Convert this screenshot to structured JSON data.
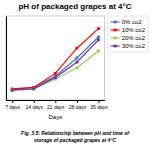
{
  "chart_data": {
    "type": "line",
    "title": "pH of packaged grapes at 4°C",
    "x_label": "Days",
    "caption": "Fig. 3.5: Relationship between pH and time of\nstorage of packaged grapes at 4°C",
    "x": [
      7,
      14,
      21,
      28,
      35
    ],
    "series": [
      {
        "name": "0% co2",
        "color": "#4472C4",
        "marker": "square",
        "values": [
          3.42,
          3.44,
          3.52,
          3.65,
          3.8
        ]
      },
      {
        "name": "10% co2",
        "color": "#FF0000",
        "marker": "square",
        "values": [
          3.43,
          3.44,
          3.54,
          3.72,
          3.86
        ]
      },
      {
        "name": "20% co2",
        "color": "#92D050",
        "marker": "square",
        "values": [
          3.42,
          3.43,
          3.5,
          3.58,
          3.7
        ]
      },
      {
        "name": "30% co2",
        "color": "#7030A0",
        "marker": "square",
        "values": [
          3.42,
          3.43,
          3.51,
          3.62,
          3.78
        ]
      }
    ],
    "xlim": [
      5,
      37
    ],
    "xticks": [
      {
        "value": 7,
        "label": "7 days"
      },
      {
        "value": 14,
        "label": "14 days"
      },
      {
        "value": 21,
        "label": "21 days"
      },
      {
        "value": 28,
        "label": "28 days"
      },
      {
        "value": 35,
        "label": "35 days"
      }
    ],
    "ylim": [
      3.35,
      3.95
    ],
    "yticks": [],
    "tick_labels": "x",
    "legend": "right"
  }
}
